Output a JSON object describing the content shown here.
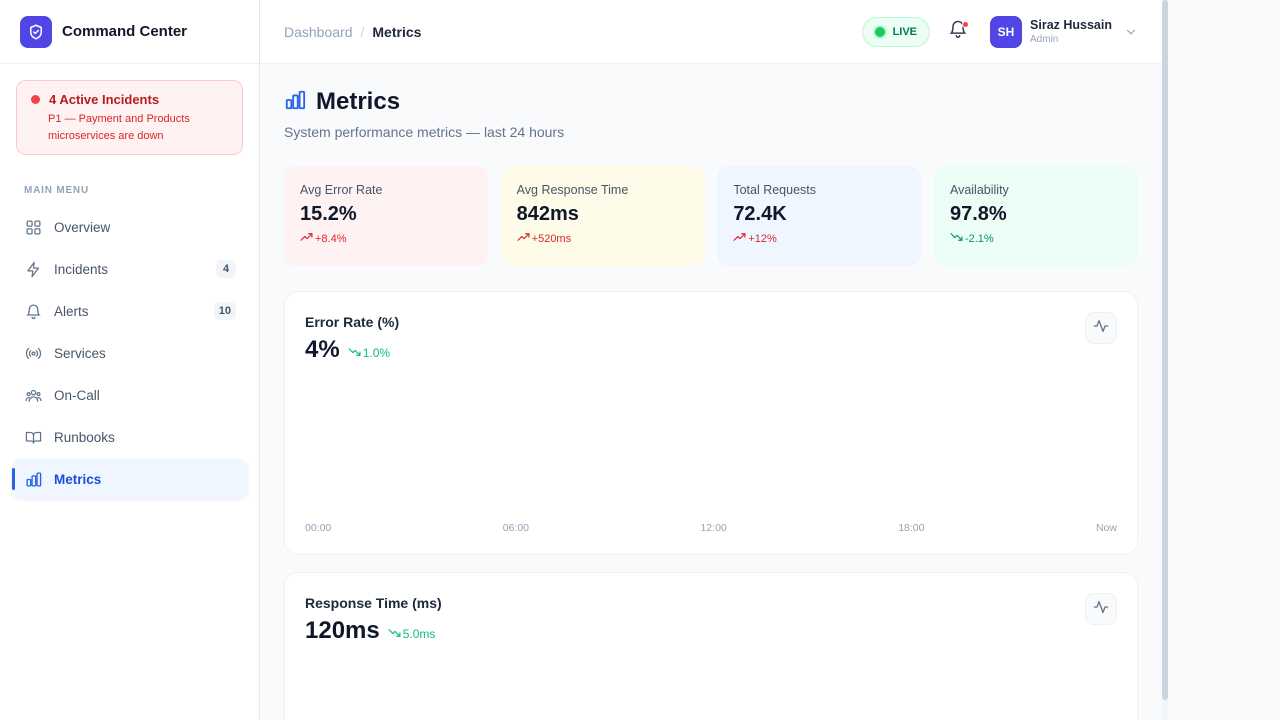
{
  "brand": {
    "name": "Command Center",
    "icon": "shield-icon"
  },
  "incident_banner": {
    "title": "4 Active Incidents",
    "description": "P1 — Payment and Products microservices are down"
  },
  "sidebar": {
    "section_label": "MAIN MENU",
    "items": [
      {
        "label": "Overview",
        "icon": "grid-icon",
        "badge": ""
      },
      {
        "label": "Incidents",
        "icon": "lightning-icon",
        "badge": "4"
      },
      {
        "label": "Alerts",
        "icon": "bell-icon",
        "badge": "10"
      },
      {
        "label": "Services",
        "icon": "broadcast-icon",
        "badge": ""
      },
      {
        "label": "On-Call",
        "icon": "users-icon",
        "badge": ""
      },
      {
        "label": "Runbooks",
        "icon": "book-icon",
        "badge": ""
      },
      {
        "label": "Metrics",
        "icon": "bar-chart-icon",
        "badge": "",
        "active": true
      }
    ]
  },
  "breadcrumb": {
    "parent": "Dashboard",
    "separator": "/",
    "current": "Metrics"
  },
  "topbar": {
    "live_label": "LIVE",
    "has_notification": true,
    "user": {
      "initials": "SH",
      "name": "Siraz Hussain",
      "role": "Admin"
    }
  },
  "page": {
    "title": "Metrics",
    "subtitle": "System performance metrics — last 24 hours"
  },
  "stats": [
    {
      "label": "Avg Error Rate",
      "value": "15.2%",
      "delta": "+8.4%",
      "direction": "up",
      "bg": "#fef2f2",
      "delta_color": "#dc2626"
    },
    {
      "label": "Avg Response Time",
      "value": "842ms",
      "delta": "+520ms",
      "direction": "up",
      "bg": "#fefce8",
      "delta_color": "#dc2626"
    },
    {
      "label": "Total Requests",
      "value": "72.4K",
      "delta": "+12%",
      "direction": "up",
      "bg": "#eff6ff",
      "delta_color": "#dc2626"
    },
    {
      "label": "Availability",
      "value": "97.8%",
      "delta": "-2.1%",
      "direction": "down",
      "bg": "#ecfdf5",
      "delta_color": "#059669"
    }
  ],
  "cards": [
    {
      "title": "Error Rate (%)",
      "value": "4%",
      "trend": "1.0%",
      "x_ticks": [
        "00:00",
        "06:00",
        "12:00",
        "18:00",
        "Now"
      ]
    },
    {
      "title": "Response Time (ms)",
      "value": "120ms",
      "trend": "5.0ms",
      "x_ticks": []
    }
  ],
  "colors": {
    "accent": "#2563eb",
    "brand": "#4f46e5",
    "danger": "#ef4444",
    "success": "#10b981"
  }
}
